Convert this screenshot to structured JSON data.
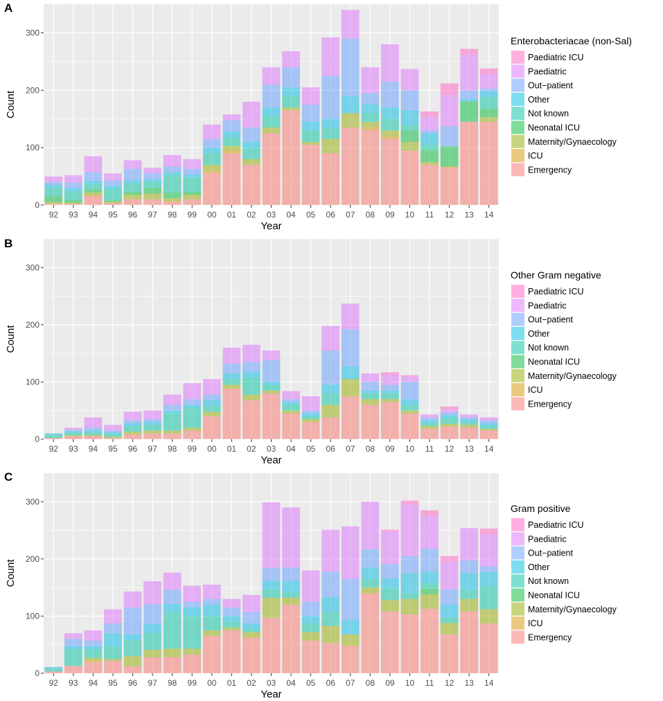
{
  "colors": {
    "panel_background": "#ebebeb",
    "gridline": "#ffffff",
    "Emergency": "#f8766d",
    "ICU": "#d39200",
    "Maternity/Gynaecology": "#93aa00",
    "Neonatal ICU": "#00ba38",
    "Not known": "#00c19f",
    "Other": "#00b9e3",
    "Out-patient": "#619cff",
    "Paediatric": "#db72fb",
    "Paediatric ICU": "#ff61c3"
  },
  "chart_data": [
    {
      "type": "bar",
      "stacked": true,
      "panel_label": "A",
      "title": "",
      "xlabel": "Year",
      "ylabel": "Count",
      "ylim": [
        0,
        350
      ],
      "yticks": [
        "0",
        "100",
        "200",
        "300"
      ],
      "grid": true,
      "legend_position": "right",
      "legend_title": "Enterobacteriacae (non-Sal)",
      "legend_items": [
        "Paediatric ICU",
        "Paediatric",
        "Out−patient",
        "Other",
        "Not known",
        "Neonatal ICU",
        "Maternity/Gynaecology",
        "ICU",
        "Emergency"
      ],
      "categories": [
        "92",
        "93",
        "94",
        "95",
        "96",
        "97",
        "98",
        "99",
        "00",
        "01",
        "02",
        "03",
        "04",
        "05",
        "06",
        "07",
        "08",
        "09",
        "10",
        "11",
        "12",
        "13",
        "14"
      ],
      "series": [
        {
          "name": "Emergency",
          "values": [
            2,
            2,
            15,
            3,
            10,
            10,
            5,
            10,
            55,
            90,
            70,
            125,
            165,
            105,
            90,
            135,
            130,
            115,
            95,
            70,
            65,
            145,
            145
          ]
        },
        {
          "name": "ICU",
          "values": [
            0,
            0,
            2,
            0,
            0,
            0,
            2,
            0,
            5,
            5,
            0,
            0,
            0,
            0,
            0,
            0,
            5,
            5,
            0,
            0,
            2,
            0,
            0
          ]
        },
        {
          "name": "Maternity/Gynaecology",
          "values": [
            3,
            2,
            5,
            3,
            8,
            10,
            5,
            8,
            10,
            8,
            10,
            10,
            5,
            5,
            25,
            25,
            10,
            10,
            15,
            5,
            0,
            0,
            8
          ]
        },
        {
          "name": "Neonatal ICU",
          "values": [
            10,
            5,
            5,
            2,
            5,
            10,
            10,
            5,
            0,
            0,
            0,
            0,
            0,
            0,
            0,
            0,
            0,
            0,
            20,
            20,
            35,
            35,
            15
          ]
        },
        {
          "name": "Not known",
          "values": [
            15,
            15,
            10,
            20,
            15,
            10,
            30,
            25,
            20,
            15,
            20,
            20,
            20,
            20,
            20,
            0,
            15,
            20,
            10,
            10,
            0,
            0,
            20
          ]
        },
        {
          "name": "Other",
          "values": [
            5,
            5,
            5,
            5,
            5,
            5,
            5,
            5,
            10,
            10,
            10,
            15,
            15,
            15,
            15,
            30,
            15,
            20,
            25,
            20,
            0,
            5,
            10
          ]
        },
        {
          "name": "Out-patient",
          "values": [
            5,
            10,
            15,
            10,
            20,
            10,
            10,
            10,
            15,
            20,
            25,
            40,
            35,
            30,
            75,
            100,
            20,
            45,
            35,
            5,
            35,
            15,
            5
          ]
        },
        {
          "name": "Paediatric",
          "values": [
            10,
            13,
            28,
            12,
            15,
            10,
            20,
            17,
            25,
            10,
            45,
            30,
            28,
            30,
            67,
            50,
            45,
            65,
            37,
            23,
            55,
            62,
            25
          ]
        },
        {
          "name": "Paediatric ICU",
          "values": [
            0,
            0,
            0,
            0,
            0,
            0,
            0,
            0,
            0,
            0,
            0,
            0,
            0,
            0,
            0,
            0,
            0,
            0,
            0,
            10,
            20,
            10,
            10
          ]
        }
      ]
    },
    {
      "type": "bar",
      "stacked": true,
      "panel_label": "B",
      "title": "",
      "xlabel": "Year",
      "ylabel": "Count",
      "ylim": [
        0,
        350
      ],
      "yticks": [
        "0",
        "100",
        "200",
        "300"
      ],
      "grid": true,
      "legend_position": "right",
      "legend_title": "Other Gram negative",
      "legend_items": [
        "Paediatric ICU",
        "Paediatric",
        "Out−patient",
        "Other",
        "Not known",
        "Neonatal ICU",
        "Maternity/Gynaecology",
        "ICU",
        "Emergency"
      ],
      "categories": [
        "92",
        "93",
        "94",
        "95",
        "96",
        "97",
        "98",
        "99",
        "00",
        "01",
        "02",
        "03",
        "04",
        "05",
        "06",
        "07",
        "08",
        "09",
        "10",
        "11",
        "12",
        "13",
        "14"
      ],
      "series": [
        {
          "name": "Emergency",
          "values": [
            2,
            5,
            5,
            2,
            8,
            10,
            10,
            15,
            40,
            88,
            68,
            80,
            45,
            30,
            38,
            75,
            60,
            65,
            45,
            18,
            22,
            20,
            15
          ]
        },
        {
          "name": "ICU",
          "values": [
            0,
            0,
            0,
            0,
            0,
            0,
            0,
            0,
            0,
            0,
            0,
            0,
            0,
            0,
            0,
            0,
            0,
            0,
            0,
            0,
            0,
            0,
            0
          ]
        },
        {
          "name": "Maternity/Gynaecology",
          "values": [
            0,
            2,
            2,
            2,
            5,
            5,
            5,
            5,
            8,
            7,
            10,
            5,
            5,
            5,
            22,
            30,
            10,
            5,
            5,
            5,
            5,
            5,
            3
          ]
        },
        {
          "name": "Neonatal ICU",
          "values": [
            0,
            0,
            0,
            0,
            0,
            0,
            0,
            0,
            0,
            0,
            0,
            0,
            0,
            0,
            0,
            0,
            0,
            0,
            0,
            0,
            0,
            0,
            0
          ]
        },
        {
          "name": "Not known",
          "values": [
            5,
            5,
            5,
            5,
            10,
            10,
            30,
            35,
            10,
            10,
            30,
            10,
            10,
            5,
            20,
            0,
            10,
            10,
            10,
            5,
            10,
            5,
            5
          ]
        },
        {
          "name": "Other",
          "values": [
            3,
            2,
            3,
            3,
            5,
            5,
            5,
            5,
            10,
            10,
            10,
            5,
            5,
            5,
            15,
            22,
            5,
            5,
            10,
            5,
            5,
            5,
            5
          ]
        },
        {
          "name": "Out-patient",
          "values": [
            0,
            2,
            5,
            3,
            5,
            5,
            10,
            10,
            10,
            17,
            17,
            38,
            5,
            5,
            60,
            65,
            15,
            10,
            30,
            5,
            5,
            3,
            5
          ]
        },
        {
          "name": "Paediatric",
          "values": [
            0,
            4,
            18,
            10,
            15,
            15,
            18,
            28,
            27,
            28,
            30,
            17,
            14,
            25,
            43,
            45,
            15,
            17,
            10,
            5,
            5,
            5,
            5
          ]
        },
        {
          "name": "Paediatric ICU",
          "values": [
            0,
            0,
            0,
            0,
            0,
            0,
            0,
            0,
            0,
            0,
            0,
            0,
            0,
            0,
            0,
            0,
            0,
            5,
            2,
            0,
            5,
            0,
            0
          ]
        }
      ]
    },
    {
      "type": "bar",
      "stacked": true,
      "panel_label": "C",
      "title": "",
      "xlabel": "Year",
      "ylabel": "Count",
      "ylim": [
        0,
        350
      ],
      "yticks": [
        "0",
        "100",
        "200",
        "300"
      ],
      "grid": true,
      "legend_position": "right",
      "legend_title": "Gram positive",
      "legend_items": [
        "Paediatric ICU",
        "Paediatric",
        "Out−patient",
        "Other",
        "Not known",
        "Neonatal ICU",
        "Maternity/Gynaecology",
        "ICU",
        "Emergency"
      ],
      "categories": [
        "92",
        "93",
        "94",
        "95",
        "96",
        "97",
        "98",
        "99",
        "00",
        "01",
        "02",
        "03",
        "04",
        "05",
        "06",
        "07",
        "08",
        "09",
        "10",
        "11",
        "12",
        "13",
        "14"
      ],
      "series": [
        {
          "name": "Emergency",
          "values": [
            3,
            13,
            20,
            22,
            12,
            28,
            28,
            33,
            65,
            75,
            62,
            97,
            120,
            57,
            53,
            48,
            140,
            108,
            103,
            113,
            68,
            108,
            87
          ]
        },
        {
          "name": "ICU",
          "values": [
            0,
            0,
            2,
            0,
            0,
            0,
            0,
            0,
            0,
            0,
            0,
            0,
            0,
            0,
            0,
            0,
            0,
            0,
            0,
            0,
            0,
            0,
            0
          ]
        },
        {
          "name": "Maternity/Gynaecology",
          "values": [
            0,
            0,
            5,
            3,
            18,
            13,
            15,
            10,
            10,
            5,
            10,
            35,
            12,
            15,
            30,
            20,
            10,
            20,
            27,
            25,
            20,
            22,
            25
          ]
        },
        {
          "name": "Neonatal ICU",
          "values": [
            0,
            0,
            0,
            0,
            0,
            0,
            0,
            0,
            0,
            0,
            0,
            0,
            0,
            0,
            0,
            0,
            0,
            0,
            0,
            10,
            0,
            0,
            0
          ]
        },
        {
          "name": "Not known",
          "values": [
            5,
            30,
            15,
            22,
            28,
            30,
            63,
            57,
            25,
            10,
            5,
            15,
            10,
            15,
            25,
            0,
            15,
            20,
            10,
            10,
            10,
            15,
            40
          ]
        },
        {
          "name": "Other",
          "values": [
            3,
            5,
            5,
            23,
            10,
            15,
            15,
            15,
            20,
            10,
            10,
            15,
            20,
            13,
            25,
            25,
            20,
            18,
            35,
            20,
            22,
            30,
            25
          ]
        },
        {
          "name": "Out-patient",
          "values": [
            0,
            12,
            10,
            17,
            47,
            35,
            25,
            10,
            10,
            15,
            20,
            22,
            23,
            25,
            45,
            72,
            32,
            25,
            30,
            40,
            27,
            22,
            10
          ]
        },
        {
          "name": "Paediatric",
          "values": [
            0,
            10,
            18,
            25,
            28,
            40,
            30,
            28,
            25,
            15,
            30,
            115,
            105,
            55,
            73,
            92,
            83,
            57,
            90,
            57,
            48,
            57,
            56
          ]
        },
        {
          "name": "Paediatric ICU",
          "values": [
            0,
            0,
            0,
            0,
            0,
            0,
            0,
            0,
            0,
            0,
            0,
            0,
            0,
            0,
            0,
            0,
            0,
            3,
            7,
            10,
            10,
            0,
            10
          ]
        }
      ]
    }
  ]
}
